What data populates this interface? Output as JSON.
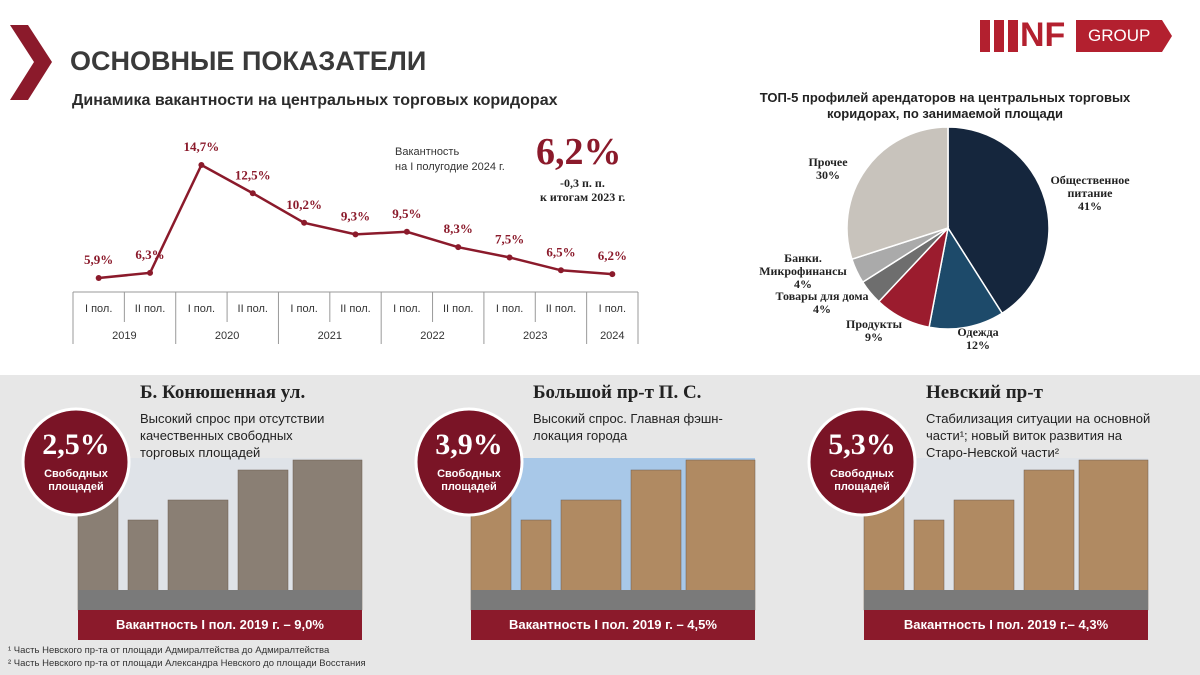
{
  "header": {
    "title": "ОСНОВНЫЕ ПОКАЗАТЕЛИ",
    "logo_mark": "NF",
    "logo_group": "GROUP"
  },
  "chart_data": [
    {
      "type": "line",
      "title": "Динамика вакантности на центральных торговых коридорах",
      "categories": [
        "I пол.",
        "II пол.",
        "I пол.",
        "II пол.",
        "I пол.",
        "II пол.",
        "I пол.",
        "II пол.",
        "I пол.",
        "II пол.",
        "I пол."
      ],
      "years": [
        "2019",
        "2020",
        "2021",
        "2022",
        "2023",
        "2024"
      ],
      "values": [
        5.9,
        6.3,
        14.7,
        12.5,
        10.2,
        9.3,
        9.5,
        8.3,
        7.5,
        6.5,
        6.2
      ],
      "value_labels": [
        "5,9%",
        "6,3%",
        "14,7%",
        "12,5%",
        "10,2%",
        "9,3%",
        "9,5%",
        "8,3%",
        "7,5%",
        "6,5%",
        "6,2%"
      ],
      "color": "#8b1a2b",
      "highlight": {
        "label": [
          "Вакантность",
          "на I полугодие 2024 г."
        ],
        "value_label": "6,2%",
        "change": "-0,3 п. п.",
        "note": "к итогам 2023 г."
      }
    },
    {
      "type": "pie",
      "title": "ТОП-5 профилей арендаторов на центральных торговых коридорах, по занимаемой площади",
      "categories": [
        "Общественное питание",
        "Одежда",
        "Продукты",
        "Товары для дома",
        "Банки. Микрофинансы",
        "Прочее"
      ],
      "values": [
        41,
        12,
        9,
        4,
        4,
        30
      ],
      "value_labels": [
        "41%",
        "12%",
        "9%",
        "4%",
        "4%",
        "30%"
      ],
      "colors": [
        "#15263d",
        "#1d4a6a",
        "#9b1c2e",
        "#6e6e6e",
        "#aaaaaa",
        "#c8c3bc"
      ]
    }
  ],
  "cards": [
    {
      "title": "Б. Конюшенная ул.",
      "description": "Высокий спрос при отсутствии качественных свободных торговых площадей",
      "share": "2,5%",
      "share_label": "Свободных площадей",
      "footer": "Вакантность I пол. 2019 г. – 9,0%"
    },
    {
      "title": "Большой пр-т П. С.",
      "description": "Высокий спрос. Главная фэшн-локация города",
      "share": "3,9%",
      "share_label": "Свободных площадей",
      "footer": "Вакантность I пол. 2019 г. – 4,5%"
    },
    {
      "title": "Невский пр-т",
      "description": "Стабилизация ситуации на основной части¹; новый виток развития на Старо-Невской части²",
      "share": "5,3%",
      "share_label": "Свободных площадей",
      "footer": "Вакантность I пол. 2019 г.– 4,3%"
    }
  ],
  "footnotes": [
    "¹ Часть Невского пр-та от площади Адмиралтейства до Адмиралтейства",
    "² Часть Невского пр-та от площади Александра Невского до площади Восстания"
  ]
}
